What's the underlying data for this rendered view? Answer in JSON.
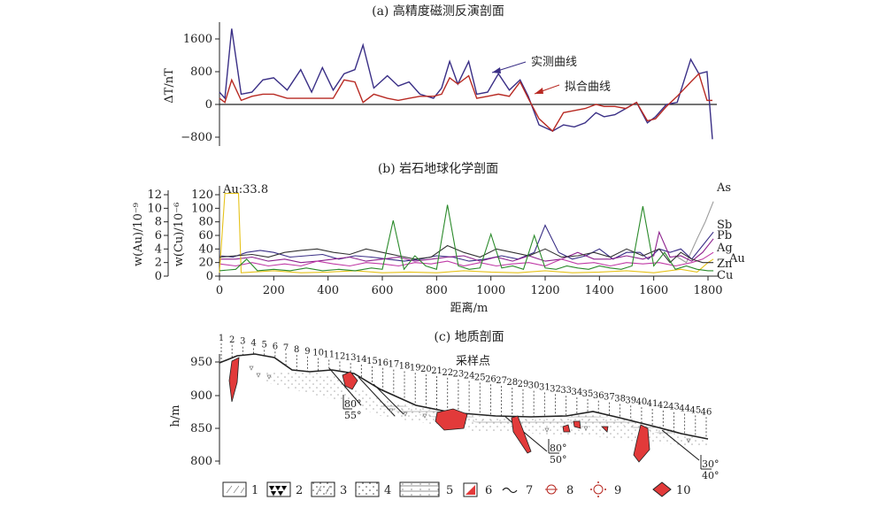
{
  "chart_data": [
    {
      "type": "line",
      "title": "(a) 高精度磁测反演剖面",
      "ylabel": "ΔT/nT",
      "ylim": [
        -1000,
        2000
      ],
      "yticks": [
        1600,
        800,
        0,
        -800
      ],
      "yticklabels": [
        "1600",
        "800",
        "0",
        "−800"
      ],
      "xlim": [
        0,
        1820
      ],
      "series": [
        {
          "name": "实测曲线",
          "color": "#3a2f86",
          "x": [
            0,
            20,
            45,
            80,
            120,
            160,
            200,
            250,
            300,
            340,
            380,
            420,
            460,
            500,
            530,
            570,
            620,
            660,
            700,
            740,
            790,
            820,
            850,
            880,
            920,
            950,
            990,
            1030,
            1070,
            1110,
            1140,
            1180,
            1230,
            1270,
            1310,
            1350,
            1390,
            1420,
            1460,
            1500,
            1540,
            1580,
            1610,
            1650,
            1690,
            1740,
            1770,
            1800,
            1820
          ],
          "y": [
            300,
            150,
            1850,
            250,
            300,
            600,
            650,
            350,
            850,
            300,
            900,
            350,
            750,
            850,
            1450,
            400,
            700,
            450,
            550,
            250,
            150,
            400,
            1050,
            500,
            1050,
            250,
            300,
            750,
            350,
            600,
            200,
            -500,
            -650,
            -500,
            -550,
            -450,
            -200,
            -300,
            -250,
            -100,
            50,
            -450,
            -300,
            0,
            50,
            1100,
            750,
            800,
            -850
          ]
        },
        {
          "name": "拟合曲线",
          "color": "#b82a23",
          "x": [
            0,
            20,
            45,
            80,
            120,
            160,
            200,
            250,
            300,
            340,
            380,
            420,
            460,
            500,
            530,
            570,
            620,
            660,
            700,
            740,
            790,
            820,
            850,
            880,
            920,
            950,
            990,
            1030,
            1070,
            1110,
            1140,
            1180,
            1230,
            1270,
            1310,
            1350,
            1390,
            1420,
            1460,
            1500,
            1540,
            1580,
            1610,
            1650,
            1690,
            1740,
            1770,
            1800,
            1820
          ],
          "y": [
            150,
            50,
            600,
            100,
            200,
            250,
            250,
            150,
            150,
            150,
            150,
            150,
            600,
            550,
            50,
            250,
            150,
            100,
            150,
            200,
            200,
            250,
            650,
            500,
            700,
            150,
            200,
            250,
            200,
            550,
            150,
            -350,
            -650,
            -200,
            -150,
            -100,
            0,
            -50,
            -50,
            -100,
            50,
            -400,
            -350,
            -50,
            200,
            550,
            750,
            100,
            100
          ]
        }
      ]
    },
    {
      "type": "line",
      "title": "(b) 岩石地球化学剖面",
      "ylabel_left": "w(Au)/10⁻⁹",
      "ylabel_right": "w(Cu)/10⁻⁶",
      "yticks_au": [
        0,
        2,
        4,
        6,
        8,
        10,
        12
      ],
      "yticks_cu": [
        0,
        20,
        40,
        60,
        80,
        100,
        120
      ],
      "ylim_cu": [
        0,
        130
      ],
      "xlabel": "距离/m",
      "xlim": [
        0,
        1850
      ],
      "xticks": [
        0,
        200,
        400,
        600,
        800,
        1000,
        1200,
        1400,
        1600,
        1800
      ],
      "annotation": "Au:33.8",
      "series": [
        {
          "name": "As",
          "color": "#9b9b9b",
          "x": [
            1680,
            1720,
            1760,
            1790,
            1820
          ],
          "y": [
            30,
            20,
            55,
            80,
            110
          ]
        },
        {
          "name": "Sb",
          "color": "#3a2f86",
          "x": [
            0,
            50,
            100,
            150,
            200,
            260,
            320,
            380,
            440,
            500,
            560,
            620,
            680,
            740,
            800,
            860,
            920,
            980,
            1040,
            1100,
            1160,
            1200,
            1250,
            1300,
            1350,
            1400,
            1450,
            1500,
            1550,
            1580,
            1620,
            1660,
            1700,
            1740,
            1780,
            1820
          ],
          "y": [
            30,
            28,
            35,
            38,
            35,
            28,
            30,
            32,
            25,
            30,
            28,
            25,
            22,
            25,
            30,
            28,
            22,
            25,
            30,
            25,
            35,
            75,
            35,
            25,
            30,
            40,
            25,
            35,
            35,
            25,
            40,
            35,
            40,
            25,
            45,
            65
          ]
        },
        {
          "name": "Pb",
          "color": "#8c1f8c",
          "x": [
            0,
            60,
            120,
            180,
            240,
            300,
            360,
            420,
            480,
            540,
            600,
            660,
            720,
            780,
            840,
            900,
            960,
            1020,
            1080,
            1140,
            1200,
            1260,
            1320,
            1380,
            1440,
            1500,
            1560,
            1600,
            1620,
            1660,
            1700,
            1740,
            1780,
            1820
          ],
          "y": [
            25,
            25,
            28,
            22,
            25,
            20,
            22,
            25,
            28,
            22,
            25,
            28,
            22,
            25,
            28,
            30,
            22,
            28,
            22,
            30,
            22,
            25,
            35,
            25,
            25,
            30,
            25,
            30,
            65,
            28,
            30,
            22,
            35,
            55
          ]
        },
        {
          "name": "Ag",
          "color": "#c03aa6",
          "x": [
            0,
            60,
            120,
            180,
            240,
            300,
            360,
            420,
            480,
            540,
            600,
            660,
            720,
            780,
            840,
            900,
            960,
            1020,
            1080,
            1140,
            1200,
            1260,
            1320,
            1380,
            1440,
            1500,
            1560,
            1620,
            1680,
            1740,
            1780,
            1820
          ],
          "y": [
            18,
            15,
            20,
            15,
            18,
            15,
            22,
            18,
            15,
            20,
            18,
            15,
            20,
            18,
            22,
            15,
            20,
            15,
            18,
            20,
            15,
            25,
            18,
            20,
            15,
            20,
            18,
            20,
            15,
            20,
            25,
            35
          ]
        },
        {
          "name": "Au",
          "color": "#e6c21a",
          "x": [
            0,
            20,
            70,
            80,
            120,
            200,
            300,
            400,
            500,
            600,
            700,
            800,
            900,
            1000,
            1100,
            1200,
            1300,
            1400,
            1500,
            1600,
            1700,
            1760,
            1800,
            1820
          ],
          "y": [
            5,
            122,
            122,
            5,
            6,
            8,
            5,
            6,
            8,
            5,
            6,
            5,
            8,
            6,
            5,
            8,
            5,
            6,
            8,
            5,
            10,
            6,
            20,
            25
          ]
        },
        {
          "name": "Zn",
          "color": "#333333",
          "x": [
            0,
            60,
            120,
            180,
            240,
            300,
            360,
            420,
            480,
            540,
            600,
            660,
            720,
            780,
            840,
            900,
            960,
            1020,
            1080,
            1140,
            1200,
            1260,
            1320,
            1380,
            1440,
            1500,
            1560,
            1620,
            1660,
            1700,
            1740,
            1780,
            1820
          ],
          "y": [
            28,
            30,
            32,
            28,
            35,
            38,
            40,
            35,
            32,
            40,
            35,
            30,
            25,
            28,
            45,
            35,
            28,
            40,
            35,
            30,
            40,
            28,
            30,
            35,
            28,
            40,
            30,
            40,
            20,
            35,
            25,
            20,
            20
          ]
        },
        {
          "name": "Cu",
          "color": "#2a8a2a",
          "x": [
            0,
            60,
            100,
            140,
            200,
            260,
            320,
            380,
            440,
            500,
            560,
            600,
            640,
            680,
            720,
            760,
            800,
            840,
            880,
            920,
            960,
            1000,
            1040,
            1080,
            1120,
            1160,
            1200,
            1240,
            1280,
            1320,
            1360,
            1400,
            1440,
            1480,
            1520,
            1560,
            1600,
            1640,
            1680,
            1720,
            1760,
            1800,
            1820
          ],
          "y": [
            8,
            10,
            25,
            8,
            10,
            8,
            12,
            8,
            10,
            8,
            12,
            10,
            82,
            10,
            30,
            15,
            10,
            105,
            15,
            10,
            12,
            62,
            12,
            15,
            10,
            60,
            12,
            10,
            15,
            12,
            10,
            15,
            12,
            10,
            15,
            103,
            15,
            35,
            10,
            15,
            10,
            8,
            8
          ]
        }
      ]
    }
  ],
  "section": {
    "title": "(c) 地质剖面",
    "ylabel": "h/m",
    "yticks": [
      "950",
      "900",
      "850",
      "800"
    ],
    "sample_label": "采样点",
    "sample_numbers": [
      "1",
      "2",
      "3",
      "4",
      "5",
      "6",
      "7",
      "8",
      "9",
      "10",
      "11",
      "12",
      "13",
      "14",
      "15",
      "16",
      "17",
      "18",
      "19",
      "20",
      "21",
      "22",
      "23",
      "24",
      "25",
      "26",
      "27",
      "28",
      "29",
      "30",
      "31",
      "32",
      "33",
      "34",
      "35",
      "36",
      "37",
      "38",
      "39",
      "40",
      "41",
      "42",
      "43",
      "44",
      "45",
      "46"
    ],
    "dips": [
      {
        "upper": "80°",
        "lower": "55°"
      },
      {
        "upper": "80°",
        "lower": "50°"
      },
      {
        "upper": "30°",
        "lower": "40°"
      }
    ]
  },
  "legend": {
    "items": [
      {
        "label": "1",
        "pattern": "dash-dot"
      },
      {
        "label": "2",
        "pattern": "v-marks"
      },
      {
        "label": "3",
        "pattern": "dots-slash"
      },
      {
        "label": "4",
        "pattern": "dots"
      },
      {
        "label": "5",
        "pattern": "strata"
      },
      {
        "label": "6",
        "pattern": "red-triangle"
      },
      {
        "label": "7",
        "pattern": "wave"
      },
      {
        "label": "8",
        "pattern": "circle-bar"
      },
      {
        "label": "9",
        "pattern": "circle-dots"
      },
      {
        "label": "10",
        "pattern": "red-diamond"
      }
    ]
  },
  "colors": {
    "measured": "#3a2f86",
    "fitted": "#b82a23",
    "ore": "#e23a3a"
  }
}
